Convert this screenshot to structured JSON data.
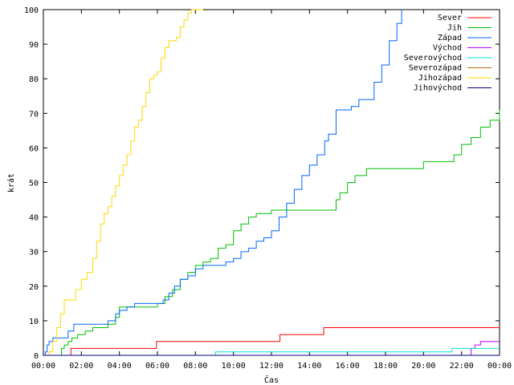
{
  "chart_data": {
    "type": "line",
    "xlabel": "Čas",
    "ylabel": "krát",
    "xlim": [
      0,
      24
    ],
    "ylim": [
      0,
      100
    ],
    "grid": false,
    "legend_placement": "top-right",
    "x_tick_labels": [
      "00:00",
      "02:00",
      "04:00",
      "06:00",
      "08:00",
      "10:00",
      "12:00",
      "14:00",
      "16:00",
      "18:00",
      "20:00",
      "22:00",
      "00:00"
    ],
    "y_tick_labels": [
      "0",
      "10",
      "20",
      "30",
      "40",
      "50",
      "60",
      "70",
      "80",
      "90",
      "100"
    ],
    "series": [
      {
        "name": "Sever",
        "color": "#ff0000",
        "x": [
          0,
          1.4,
          1.45,
          5.9,
          5.95,
          12.4,
          12.45,
          14.7,
          14.75,
          24
        ],
        "y": [
          0,
          0,
          2,
          2,
          4,
          4,
          6,
          6,
          8,
          8
        ]
      },
      {
        "name": "Jih",
        "color": "#00c000",
        "x": [
          0,
          0.8,
          0.95,
          1.1,
          1.3,
          1.5,
          1.8,
          2.2,
          2.6,
          3.1,
          3.4,
          3.8,
          4.0,
          4.4,
          4.8,
          5.2,
          5.6,
          6.0,
          6.4,
          6.8,
          7.2,
          7.6,
          8.0,
          8.4,
          8.8,
          9.2,
          9.6,
          10.0,
          10.4,
          10.8,
          11.2,
          11.6,
          12.0,
          12.4,
          15.2,
          15.4,
          15.6,
          16.0,
          16.4,
          17.0,
          18.0,
          19.0,
          19.9,
          20.0,
          21.0,
          21.6,
          22.0,
          22.5,
          23.0,
          23.5,
          24.0
        ],
        "y": [
          0,
          0,
          2,
          3,
          4,
          5,
          6,
          7,
          8,
          8,
          9,
          11,
          14,
          14,
          14,
          14,
          14,
          15,
          17,
          19,
          22,
          24,
          26,
          27,
          28,
          31,
          32,
          36,
          38,
          40,
          41,
          41,
          42,
          42,
          42,
          45,
          47,
          50,
          52,
          54,
          54,
          54,
          54,
          56,
          56,
          58,
          61,
          63,
          66,
          68,
          71
        ]
      },
      {
        "name": "Západ",
        "color": "#0066ff",
        "x": [
          0,
          0.1,
          0.2,
          0.3,
          0.5,
          1.1,
          1.3,
          1.6,
          3.1,
          3.4,
          3.8,
          4.0,
          4.4,
          4.8,
          5.2,
          5.6,
          6.0,
          6.3,
          6.6,
          6.9,
          7.2,
          7.6,
          8.0,
          8.4,
          9.0,
          9.6,
          10.0,
          10.4,
          10.8,
          11.2,
          11.6,
          12.0,
          12.4,
          12.8,
          13.2,
          13.6,
          14.0,
          14.4,
          14.8,
          15.0,
          15.4,
          15.8,
          16.2,
          16.6,
          17.0,
          17.4,
          17.8,
          18.2,
          18.6,
          18.85
        ],
        "y": [
          0,
          1,
          3,
          4,
          5,
          5,
          7,
          9,
          9,
          10,
          12,
          13,
          14,
          15,
          15,
          15,
          15,
          16,
          18,
          20,
          22,
          23,
          25,
          26,
          26,
          27,
          28,
          30,
          31,
          33,
          34,
          36,
          40,
          44,
          48,
          52,
          55,
          58,
          62,
          64,
          71,
          71,
          72,
          74,
          74,
          79,
          84,
          91,
          96,
          100
        ]
      },
      {
        "name": "Východ",
        "color": "#c000ff",
        "x": [
          0,
          22.4,
          22.5,
          22.7,
          23.0,
          24
        ],
        "y": [
          0,
          0,
          2,
          3,
          4,
          4
        ]
      },
      {
        "name": "Severovýchod",
        "color": "#00e0e0",
        "x": [
          0,
          9.0,
          9.05,
          21.4,
          21.5,
          24
        ],
        "y": [
          0,
          0,
          1,
          1,
          2,
          2
        ]
      },
      {
        "name": "Severozápad",
        "color": "#c06000",
        "x": [
          0,
          24
        ],
        "y": [
          0,
          0
        ]
      },
      {
        "name": "Jihozápad",
        "color": "#ffd700",
        "x": [
          0,
          0.3,
          0.5,
          0.7,
          0.9,
          1.1,
          1.3,
          1.5,
          1.7,
          2.0,
          2.3,
          2.6,
          2.8,
          3.0,
          3.2,
          3.4,
          3.6,
          3.8,
          4.0,
          4.2,
          4.4,
          4.6,
          4.8,
          5.0,
          5.2,
          5.4,
          5.6,
          5.8,
          6.0,
          6.2,
          6.4,
          6.6,
          6.8,
          7.0,
          7.2,
          7.4,
          7.6,
          7.8,
          8.0,
          8.2,
          8.4
        ],
        "y": [
          0,
          1,
          4,
          8,
          12,
          16,
          16,
          16,
          19,
          22,
          24,
          28,
          33,
          38,
          41,
          43,
          46,
          49,
          52,
          55,
          58,
          62,
          66,
          68,
          72,
          76,
          80,
          81,
          82,
          86,
          89,
          91,
          91,
          92,
          95,
          97,
          99,
          100,
          100,
          100,
          100
        ]
      },
      {
        "name": "Jihovýchod",
        "color": "#000080",
        "x": [
          0,
          24
        ],
        "y": [
          0,
          0
        ]
      }
    ]
  }
}
